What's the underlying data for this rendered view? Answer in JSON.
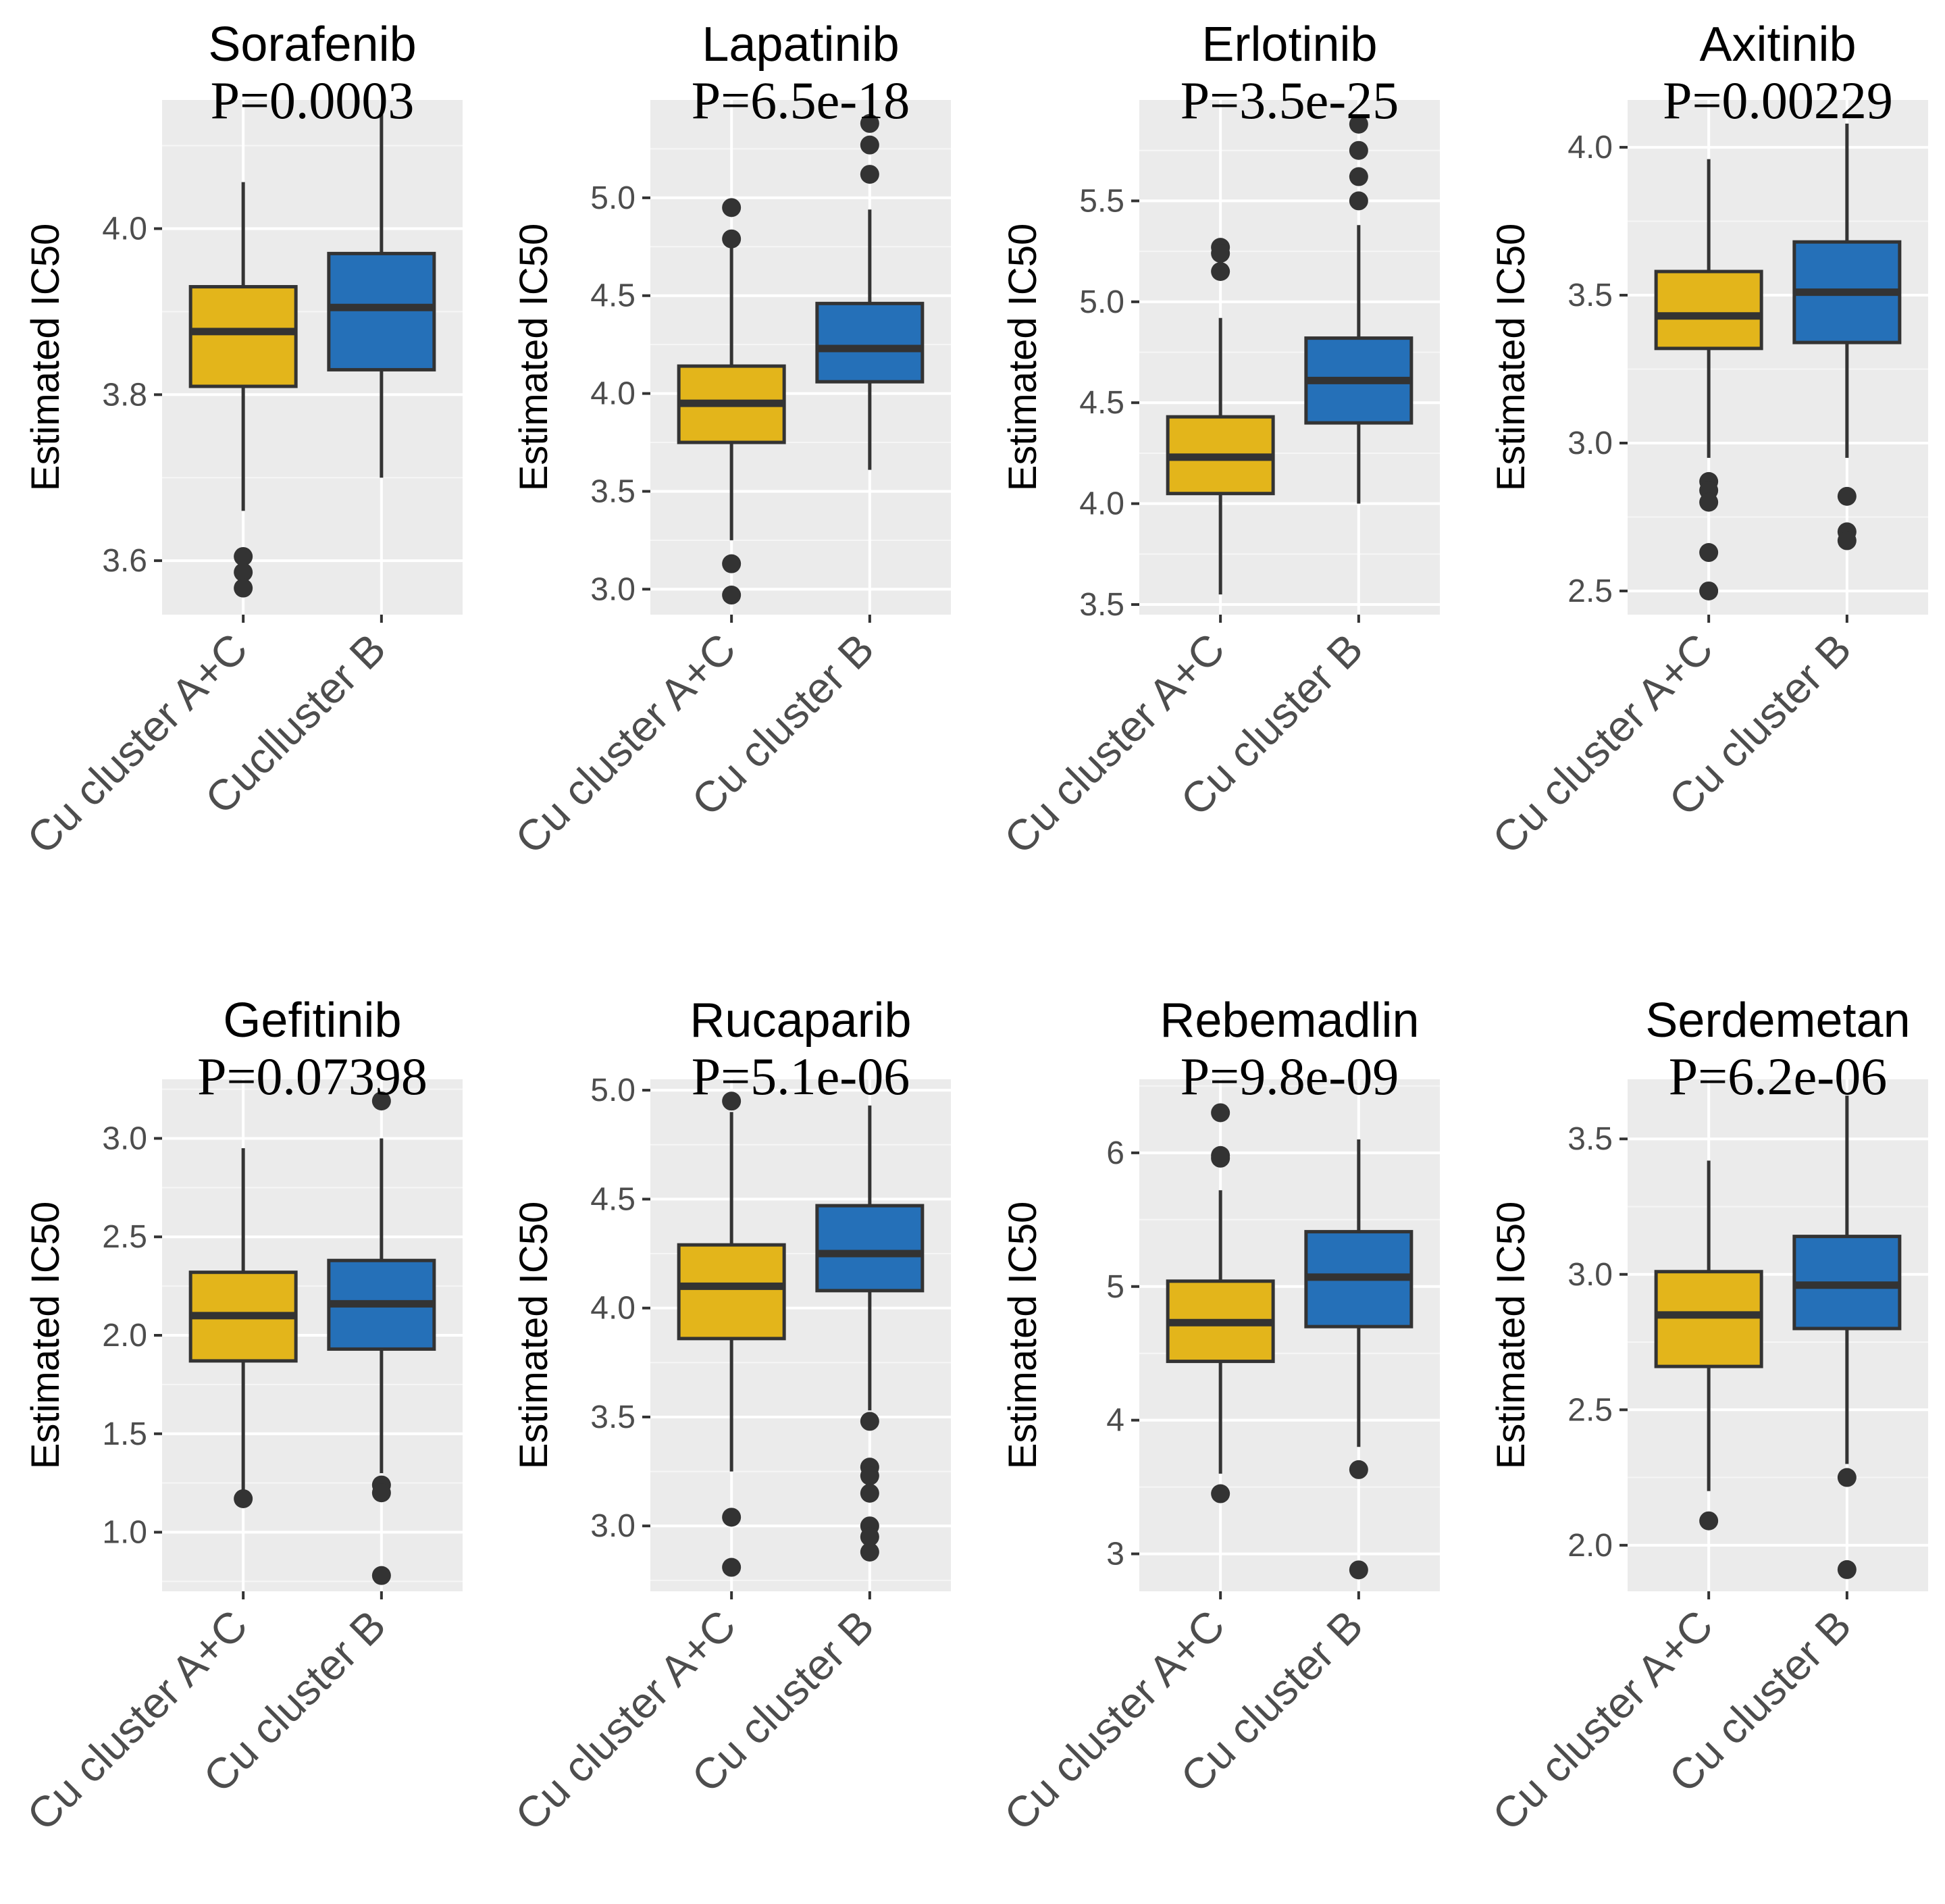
{
  "figure": {
    "y_axis_label": "Estimated IC50",
    "colors": {
      "group_a": "#e3b51b",
      "group_b": "#2570b8",
      "panel_bg": "#ebebeb",
      "grid": "#ffffff",
      "line": "#333333",
      "tick_text": "#4d4d4d"
    }
  },
  "chart_data": [
    {
      "type": "boxplot",
      "title": "Sorafenib",
      "p_value": "P=0.0003",
      "ylabel": "Estimated IC50",
      "ylim": [
        3.535,
        4.155
      ],
      "yticks": [
        3.6,
        3.8,
        4.0
      ],
      "ytick_labels": [
        "3.6",
        "3.8",
        "4.0"
      ],
      "categories": [
        "Cu cluster A+C",
        "Cuclluster B"
      ],
      "boxes": [
        {
          "group": "Cu cluster A+C",
          "whisker_low": 3.66,
          "q1": 3.81,
          "median": 3.876,
          "q3": 3.93,
          "whisker_high": 4.056,
          "outliers": [
            3.605,
            3.586,
            3.567
          ]
        },
        {
          "group": "Cuclluster B",
          "whisker_low": 3.7,
          "q1": 3.83,
          "median": 3.905,
          "q3": 3.97,
          "whisker_high": 4.14,
          "outliers": []
        }
      ]
    },
    {
      "type": "boxplot",
      "title": "Lapatinib",
      "p_value": "P=6.5e-18",
      "ylabel": "Estimated IC50",
      "ylim": [
        2.87,
        5.5
      ],
      "yticks": [
        3.0,
        3.5,
        4.0,
        4.5,
        5.0
      ],
      "ytick_labels": [
        "3.0",
        "3.5",
        "4.0",
        "4.5",
        "5.0"
      ],
      "categories": [
        "Cu cluster A+C",
        "Cu cluster B"
      ],
      "boxes": [
        {
          "group": "Cu cluster A+C",
          "whisker_low": 3.25,
          "q1": 3.75,
          "median": 3.95,
          "q3": 4.14,
          "whisker_high": 4.8,
          "outliers": [
            4.95,
            4.79,
            3.13,
            2.97
          ]
        },
        {
          "group": "Cu cluster B",
          "whisker_low": 3.61,
          "q1": 4.06,
          "median": 4.23,
          "q3": 4.46,
          "whisker_high": 4.94,
          "outliers": [
            5.38,
            5.27,
            5.12
          ]
        }
      ]
    },
    {
      "type": "boxplot",
      "title": "Erlotinib",
      "p_value": "P=3.5e-25",
      "ylabel": "Estimated IC50",
      "ylim": [
        3.45,
        6.0
      ],
      "yticks": [
        3.5,
        4.0,
        4.5,
        5.0,
        5.5
      ],
      "ytick_labels": [
        "3.5",
        "4.0",
        "4.5",
        "5.0",
        "5.5"
      ],
      "categories": [
        "Cu cluster A+C",
        "Cu cluster B"
      ],
      "boxes": [
        {
          "group": "Cu cluster A+C",
          "whisker_low": 3.55,
          "q1": 4.05,
          "median": 4.23,
          "q3": 4.43,
          "whisker_high": 4.92,
          "outliers": [
            5.27,
            5.24,
            5.15
          ]
        },
        {
          "group": "Cu cluster B",
          "whisker_low": 4.0,
          "q1": 4.4,
          "median": 4.61,
          "q3": 4.82,
          "whisker_high": 5.38,
          "outliers": [
            5.88,
            5.75,
            5.62,
            5.5
          ]
        }
      ]
    },
    {
      "type": "boxplot",
      "title": "Axitinib",
      "p_value": "P=0.00229",
      "ylabel": "Estimated IC50",
      "ylim": [
        2.42,
        4.16
      ],
      "yticks": [
        2.5,
        3.0,
        3.5,
        4.0
      ],
      "ytick_labels": [
        "2.5",
        "3.0",
        "3.5",
        "4.0"
      ],
      "categories": [
        "Cu cluster A+C",
        "Cu cluster B"
      ],
      "boxes": [
        {
          "group": "Cu cluster A+C",
          "whisker_low": 2.95,
          "q1": 3.32,
          "median": 3.43,
          "q3": 3.58,
          "whisker_high": 3.96,
          "outliers": [
            2.87,
            2.84,
            2.8,
            2.63,
            2.5
          ]
        },
        {
          "group": "Cu cluster B",
          "whisker_low": 2.95,
          "q1": 3.34,
          "median": 3.51,
          "q3": 3.68,
          "whisker_high": 4.08,
          "outliers": [
            2.82,
            2.7,
            2.67
          ]
        }
      ]
    },
    {
      "type": "boxplot",
      "title": "Gefitinib",
      "p_value": "P=0.07398",
      "ylabel": "Estimated IC50",
      "ylim": [
        0.7,
        3.3
      ],
      "yticks": [
        1.0,
        1.5,
        2.0,
        2.5,
        3.0
      ],
      "ytick_labels": [
        "1.0",
        "1.5",
        "2.0",
        "2.5",
        "3.0"
      ],
      "categories": [
        "Cu cluster A+C",
        "Cu cluster B"
      ],
      "boxes": [
        {
          "group": "Cu cluster A+C",
          "whisker_low": 1.2,
          "q1": 1.87,
          "median": 2.1,
          "q3": 2.32,
          "whisker_high": 2.95,
          "outliers": [
            1.17
          ]
        },
        {
          "group": "Cu cluster B",
          "whisker_low": 1.3,
          "q1": 1.93,
          "median": 2.16,
          "q3": 2.38,
          "whisker_high": 3.0,
          "outliers": [
            3.19,
            1.24,
            1.2,
            0.78
          ]
        }
      ]
    },
    {
      "type": "boxplot",
      "title": "Rucaparib",
      "p_value": "P=5.1e-06",
      "ylabel": "Estimated IC50",
      "ylim": [
        2.7,
        5.05
      ],
      "yticks": [
        3.0,
        3.5,
        4.0,
        4.5,
        5.0
      ],
      "ytick_labels": [
        "3.0",
        "3.5",
        "4.0",
        "4.5",
        "5.0"
      ],
      "categories": [
        "Cu cluster A+C",
        "Cu cluster B"
      ],
      "boxes": [
        {
          "group": "Cu cluster A+C",
          "whisker_low": 3.25,
          "q1": 3.86,
          "median": 4.1,
          "q3": 4.29,
          "whisker_high": 4.9,
          "outliers": [
            4.95,
            3.04,
            2.81
          ]
        },
        {
          "group": "Cu cluster B",
          "whisker_low": 3.53,
          "q1": 4.08,
          "median": 4.25,
          "q3": 4.47,
          "whisker_high": 4.93,
          "outliers": [
            3.48,
            3.27,
            3.23,
            3.15,
            3.0,
            2.95,
            2.88
          ]
        }
      ]
    },
    {
      "type": "boxplot",
      "title": "Rebemadlin",
      "p_value": "P=9.8e-09",
      "ylabel": "Estimated IC50",
      "ylim": [
        2.72,
        6.55
      ],
      "yticks": [
        3,
        4,
        5,
        6
      ],
      "ytick_labels": [
        "3",
        "4",
        "5",
        "6"
      ],
      "categories": [
        "Cu cluster A+C",
        "Cu cluster B"
      ],
      "boxes": [
        {
          "group": "Cu cluster A+C",
          "whisker_low": 3.6,
          "q1": 4.44,
          "median": 4.73,
          "q3": 5.04,
          "whisker_high": 5.72,
          "outliers": [
            6.3,
            5.98,
            5.96,
            3.45
          ]
        },
        {
          "group": "Cu cluster B",
          "whisker_low": 3.8,
          "q1": 4.7,
          "median": 5.07,
          "q3": 5.41,
          "whisker_high": 6.1,
          "outliers": [
            3.63,
            2.88
          ]
        }
      ]
    },
    {
      "type": "boxplot",
      "title": "Serdemetan",
      "p_value": "P=6.2e-06",
      "ylabel": "Estimated IC50",
      "ylim": [
        1.83,
        3.72
      ],
      "yticks": [
        2.0,
        2.5,
        3.0,
        3.5
      ],
      "ytick_labels": [
        "2.0",
        "2.5",
        "3.0",
        "3.5"
      ],
      "categories": [
        "Cu cluster A+C",
        "Cu cluster B"
      ],
      "boxes": [
        {
          "group": "Cu cluster A+C",
          "whisker_low": 2.2,
          "q1": 2.66,
          "median": 2.85,
          "q3": 3.01,
          "whisker_high": 3.42,
          "outliers": [
            2.09
          ]
        },
        {
          "group": "Cu cluster B",
          "whisker_low": 2.3,
          "q1": 2.8,
          "median": 2.96,
          "q3": 3.14,
          "whisker_high": 3.66,
          "outliers": [
            2.25,
            1.91
          ]
        }
      ]
    }
  ]
}
